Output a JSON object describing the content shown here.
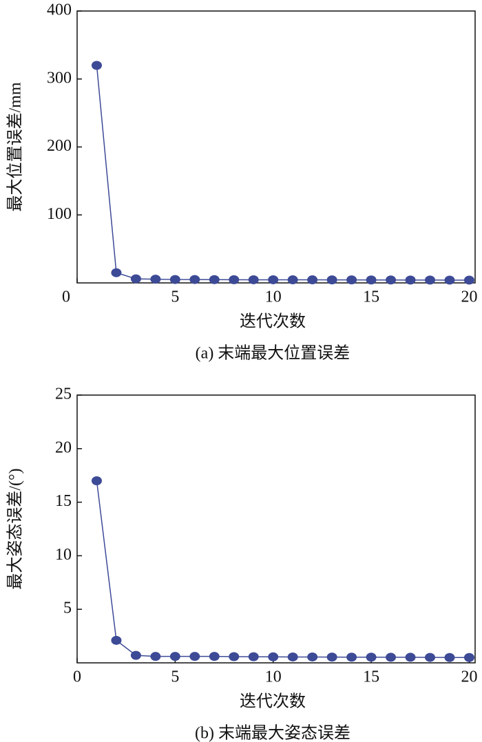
{
  "chart_data": [
    {
      "type": "line",
      "caption": "(a) 末端最大位置误差",
      "x_label": "迭代次数",
      "y_label": "最大位置误差/mm",
      "x": [
        1,
        2,
        3,
        4,
        5,
        6,
        7,
        8,
        9,
        10,
        11,
        12,
        13,
        14,
        15,
        16,
        17,
        18,
        19,
        20
      ],
      "series": [
        {
          "name": "最大位置误差",
          "color": "#3d4a96",
          "values": [
            320,
            15,
            6,
            5.5,
            5,
            5,
            4.8,
            4.7,
            4.6,
            4.6,
            4.5,
            4.5,
            4.4,
            4.4,
            4.3,
            4.3,
            4.2,
            4.2,
            4.1,
            4.1
          ]
        }
      ],
      "xlim": [
        0,
        20.3
      ],
      "xticks": [
        0,
        5,
        10,
        15,
        20
      ],
      "ylim": [
        0,
        400
      ],
      "yticks": [
        100,
        200,
        300,
        400
      ]
    },
    {
      "type": "line",
      "caption": "(b) 末端最大姿态误差",
      "x_label": "迭代次数",
      "y_label": "最大姿态误差/(°)",
      "x": [
        1,
        2,
        3,
        4,
        5,
        6,
        7,
        8,
        9,
        10,
        11,
        12,
        13,
        14,
        15,
        16,
        17,
        18,
        19,
        20
      ],
      "series": [
        {
          "name": "最大姿态误差",
          "color": "#3d4a96",
          "values": [
            17,
            2.1,
            0.7,
            0.6,
            0.6,
            0.6,
            0.6,
            0.58,
            0.57,
            0.56,
            0.55,
            0.55,
            0.54,
            0.53,
            0.53,
            0.52,
            0.52,
            0.51,
            0.5,
            0.5
          ]
        }
      ],
      "xlim": [
        0,
        20.3
      ],
      "xticks": [
        0,
        5,
        10,
        15,
        20
      ],
      "ylim": [
        0,
        25
      ],
      "yticks": [
        5,
        10,
        15,
        20,
        25
      ]
    }
  ]
}
